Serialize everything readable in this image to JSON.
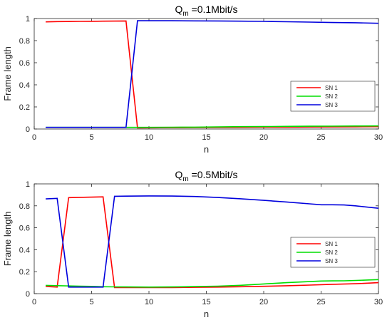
{
  "chart_data": [
    {
      "type": "line",
      "title_main": "Q",
      "title_sub": "m",
      "title_rest": " =0.1Mbit/s",
      "xlabel": "n",
      "ylabel": "Frame length",
      "xlim": [
        0,
        30
      ],
      "ylim": [
        0,
        1
      ],
      "xticks": [
        "0",
        "5",
        "10",
        "15",
        "20",
        "25",
        "30"
      ],
      "yticks": [
        "0",
        "0.2",
        "0.4",
        "0.6",
        "0.8",
        "1"
      ],
      "legend_position": "center-right",
      "series": [
        {
          "name": "SN 1",
          "color": "#ff0000",
          "points": [
            [
              1,
              0.97
            ],
            [
              2,
              0.972
            ],
            [
              3,
              0.973
            ],
            [
              4,
              0.974
            ],
            [
              5,
              0.975
            ],
            [
              6,
              0.976
            ],
            [
              7,
              0.977
            ],
            [
              8,
              0.978
            ],
            [
              9,
              0.01
            ],
            [
              10,
              0.011
            ],
            [
              12,
              0.012
            ],
            [
              14,
              0.013
            ],
            [
              16,
              0.014
            ],
            [
              18,
              0.015
            ],
            [
              20,
              0.016
            ],
            [
              22,
              0.017
            ],
            [
              24,
              0.018
            ],
            [
              26,
              0.019
            ],
            [
              28,
              0.02
            ],
            [
              30,
              0.021
            ]
          ]
        },
        {
          "name": "SN 2",
          "color": "#00dd00",
          "points": [
            [
              1,
              0.015
            ],
            [
              3,
              0.015
            ],
            [
              5,
              0.015
            ],
            [
              7,
              0.015
            ],
            [
              8,
              0.015
            ],
            [
              9,
              0.015
            ],
            [
              10,
              0.015
            ],
            [
              12,
              0.016
            ],
            [
              14,
              0.017
            ],
            [
              16,
              0.019
            ],
            [
              18,
              0.021
            ],
            [
              20,
              0.022
            ],
            [
              22,
              0.024
            ],
            [
              24,
              0.025
            ],
            [
              26,
              0.026
            ],
            [
              28,
              0.027
            ],
            [
              30,
              0.028
            ]
          ]
        },
        {
          "name": "SN 3",
          "color": "#0000dd",
          "points": [
            [
              1,
              0.015
            ],
            [
              2,
              0.015
            ],
            [
              3,
              0.015
            ],
            [
              4,
              0.015
            ],
            [
              5,
              0.015
            ],
            [
              6,
              0.015
            ],
            [
              7,
              0.015
            ],
            [
              8,
              0.015
            ],
            [
              9,
              0.98
            ],
            [
              10,
              0.98
            ],
            [
              12,
              0.98
            ],
            [
              14,
              0.979
            ],
            [
              16,
              0.978
            ],
            [
              18,
              0.976
            ],
            [
              20,
              0.974
            ],
            [
              22,
              0.971
            ],
            [
              24,
              0.968
            ],
            [
              26,
              0.964
            ],
            [
              28,
              0.962
            ],
            [
              30,
              0.957
            ]
          ]
        }
      ]
    },
    {
      "type": "line",
      "title_main": "Q",
      "title_sub": "m",
      "title_rest": " =0.5Mbit/s",
      "xlabel": "n",
      "ylabel": "Frame length",
      "xlim": [
        0,
        30
      ],
      "ylim": [
        0,
        1
      ],
      "xticks": [
        "0",
        "5",
        "10",
        "15",
        "20",
        "25",
        "30"
      ],
      "yticks": [
        "0",
        "0.2",
        "0.4",
        "0.6",
        "0.8",
        "1"
      ],
      "legend_position": "center-right",
      "series": [
        {
          "name": "SN 1",
          "color": "#ff0000",
          "points": [
            [
              1,
              0.065
            ],
            [
              2,
              0.06
            ],
            [
              3,
              0.875
            ],
            [
              4,
              0.877
            ],
            [
              5,
              0.879
            ],
            [
              6,
              0.882
            ],
            [
              7,
              0.055
            ],
            [
              8,
              0.055
            ],
            [
              10,
              0.055
            ],
            [
              12,
              0.056
            ],
            [
              14,
              0.058
            ],
            [
              16,
              0.06
            ],
            [
              18,
              0.063
            ],
            [
              20,
              0.067
            ],
            [
              22,
              0.072
            ],
            [
              24,
              0.078
            ],
            [
              26,
              0.085
            ],
            [
              28,
              0.09
            ],
            [
              30,
              0.1
            ]
          ]
        },
        {
          "name": "SN 2",
          "color": "#00dd00",
          "points": [
            [
              1,
              0.075
            ],
            [
              2,
              0.073
            ],
            [
              3,
              0.07
            ],
            [
              4,
              0.068
            ],
            [
              5,
              0.066
            ],
            [
              6,
              0.063
            ],
            [
              7,
              0.062
            ],
            [
              8,
              0.061
            ],
            [
              10,
              0.06
            ],
            [
              12,
              0.061
            ],
            [
              14,
              0.064
            ],
            [
              16,
              0.068
            ],
            [
              18,
              0.076
            ],
            [
              20,
              0.088
            ],
            [
              22,
              0.1
            ],
            [
              24,
              0.11
            ],
            [
              25,
              0.115
            ],
            [
              26,
              0.116
            ],
            [
              27,
              0.117
            ],
            [
              28,
              0.12
            ],
            [
              30,
              0.128
            ]
          ]
        },
        {
          "name": "SN 3",
          "color": "#0000dd",
          "points": [
            [
              1,
              0.863
            ],
            [
              2,
              0.868
            ],
            [
              3,
              0.06
            ],
            [
              4,
              0.06
            ],
            [
              5,
              0.06
            ],
            [
              6,
              0.06
            ],
            [
              7,
              0.887
            ],
            [
              8,
              0.888
            ],
            [
              10,
              0.89
            ],
            [
              12,
              0.889
            ],
            [
              14,
              0.885
            ],
            [
              16,
              0.876
            ],
            [
              18,
              0.864
            ],
            [
              20,
              0.85
            ],
            [
              22,
              0.835
            ],
            [
              24,
              0.818
            ],
            [
              25,
              0.81
            ],
            [
              26,
              0.81
            ],
            [
              27,
              0.808
            ],
            [
              28,
              0.8
            ],
            [
              30,
              0.778
            ]
          ]
        }
      ]
    }
  ]
}
